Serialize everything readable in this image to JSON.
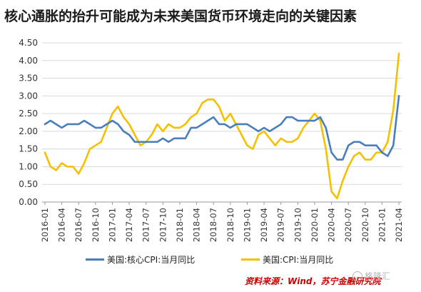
{
  "title": "核心通胀的抬升可能成为未来美国货币环境走向的关键因素",
  "source": "资料来源：Wind，苏宁金融研究院",
  "watermark": "格隆汇",
  "chart_data": {
    "type": "line",
    "ylim": [
      0,
      4.5
    ],
    "yticks": [
      "0.00",
      "0.50",
      "1.00",
      "1.50",
      "2.00",
      "2.50",
      "3.00",
      "3.50",
      "4.00",
      "4.50"
    ],
    "xticks": [
      "2016-01",
      "2016-04",
      "2016-07",
      "2016-10",
      "2017-01",
      "2017-04",
      "2017-07",
      "2017-10",
      "2018-01",
      "2018-04",
      "2018-07",
      "2018-10",
      "2019-01",
      "2019-04",
      "2019-07",
      "2019-10",
      "2020-01",
      "2020-04",
      "2020-07",
      "2020-10",
      "2021-01",
      "2021-04"
    ],
    "grid": "horizontal",
    "legend_position": "bottom",
    "series": [
      {
        "name": "美国:核心CPI:当月同比",
        "color": "#4a7ebb",
        "values": [
          2.2,
          2.3,
          2.2,
          2.1,
          2.2,
          2.2,
          2.2,
          2.3,
          2.2,
          2.1,
          2.1,
          2.2,
          2.3,
          2.2,
          2.0,
          1.9,
          1.7,
          1.7,
          1.7,
          1.7,
          1.7,
          1.8,
          1.7,
          1.8,
          1.8,
          1.8,
          2.1,
          2.1,
          2.2,
          2.3,
          2.4,
          2.2,
          2.2,
          2.1,
          2.2,
          2.2,
          2.2,
          2.1,
          2.0,
          2.1,
          2.0,
          2.1,
          2.2,
          2.4,
          2.4,
          2.3,
          2.3,
          2.3,
          2.3,
          2.4,
          2.1,
          1.4,
          1.2,
          1.2,
          1.6,
          1.7,
          1.7,
          1.6,
          1.6,
          1.6,
          1.4,
          1.3,
          1.6,
          3.0
        ]
      },
      {
        "name": "美国:CPI:当月同比",
        "color": "#f5c000",
        "values": [
          1.4,
          1.0,
          0.9,
          1.1,
          1.0,
          1.0,
          0.8,
          1.1,
          1.5,
          1.6,
          1.7,
          2.1,
          2.5,
          2.7,
          2.4,
          2.2,
          1.9,
          1.6,
          1.7,
          1.9,
          2.2,
          2.0,
          2.2,
          2.1,
          2.1,
          2.2,
          2.4,
          2.5,
          2.8,
          2.9,
          2.9,
          2.7,
          2.3,
          2.5,
          2.2,
          1.9,
          1.6,
          1.5,
          1.9,
          2.0,
          1.8,
          1.6,
          1.8,
          1.7,
          1.7,
          1.8,
          2.1,
          2.3,
          2.5,
          2.3,
          1.5,
          0.3,
          0.1,
          0.6,
          1.0,
          1.3,
          1.4,
          1.2,
          1.2,
          1.4,
          1.4,
          1.7,
          2.6,
          4.2
        ]
      }
    ]
  }
}
